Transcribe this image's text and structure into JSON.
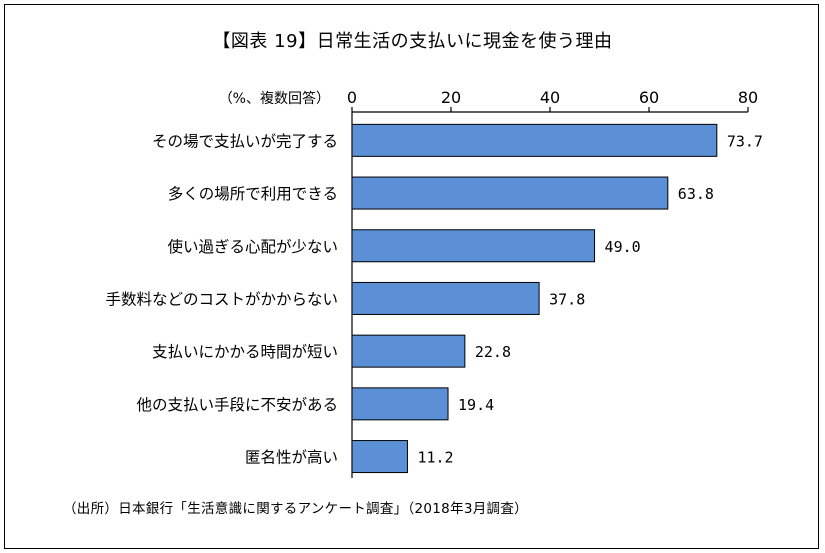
{
  "chart_data": {
    "type": "bar",
    "orientation": "horizontal",
    "title": "【図表 19】日常生活の支払いに現金を使う理由",
    "unit_label": "（%、複数回答）",
    "categories": [
      "その場で支払いが完了する",
      "多くの場所で利用できる",
      "使い過ぎる心配が少ない",
      "手数料などのコストがかからない",
      "支払いにかかる時間が短い",
      "他の支払い手段に不安がある",
      "匿名性が高い"
    ],
    "values": [
      73.7,
      63.8,
      49.0,
      37.8,
      22.8,
      19.4,
      11.2
    ],
    "value_labels": [
      "73.7",
      "63.8",
      "49.0",
      "37.8",
      "22.8",
      "19.4",
      "11.2"
    ],
    "xlim": [
      0,
      80
    ],
    "ticks": [
      "0",
      "20",
      "40",
      "60",
      "80"
    ],
    "tick_values": [
      0,
      20,
      40,
      60,
      80
    ],
    "axis_position": "top",
    "grid": false,
    "legend": "none",
    "bar_color": "#5B8FD6",
    "bar_edge_color": "#000000",
    "source": "（出所）日本銀行「生活意識に関するアンケート調査」（2018年3月調査）"
  }
}
